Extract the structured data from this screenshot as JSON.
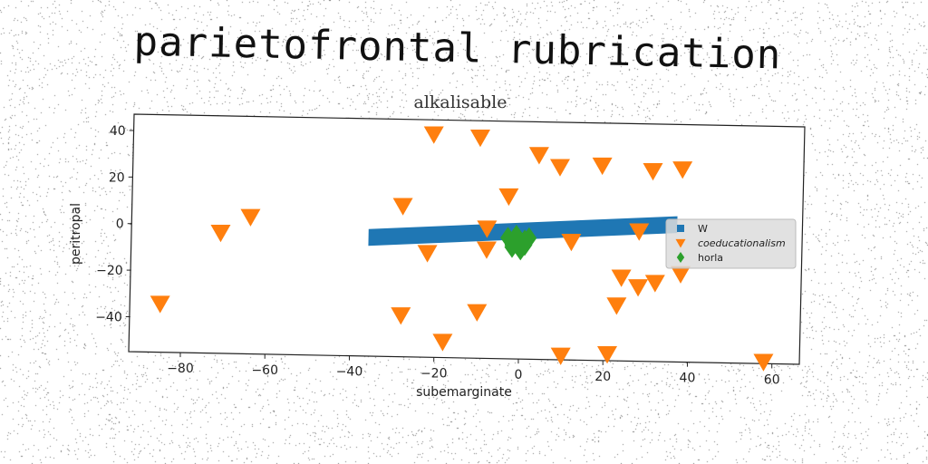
{
  "chart_data": {
    "type": "scatter",
    "title": "parietofrontal rubrication",
    "subtitle": "alkalisable",
    "xlabel": "subemarginate",
    "ylabel": "peritropal",
    "xlim": [
      -92,
      65
    ],
    "ylim": [
      -55,
      47
    ],
    "xticks": [
      -80,
      -60,
      -40,
      -20,
      0,
      20,
      40,
      60
    ],
    "yticks": [
      40,
      20,
      0,
      -20,
      -40
    ],
    "grid": false,
    "legend_position": "center-right",
    "series": [
      {
        "name": "W",
        "kind": "band",
        "color": "#1f77b4",
        "marker": "square",
        "x": [
          -36,
          37
        ],
        "y": [
          -4,
          4
        ]
      },
      {
        "name": "coeducationalism",
        "kind": "points",
        "color": "#ff7f0e",
        "marker": "triangle-down",
        "x": [
          -85,
          -71,
          -64,
          -28,
          -21,
          -10,
          -28,
          -22,
          -18,
          -10,
          -3,
          -8,
          -8,
          4,
          9,
          19,
          31,
          38,
          28,
          12,
          24,
          23,
          28,
          32,
          38,
          10,
          21,
          58
        ],
        "y": [
          -34,
          -3,
          4,
          10,
          41,
          40,
          -37,
          -10,
          -48,
          -35,
          15,
          1,
          -8,
          33,
          28,
          29,
          27,
          28,
          1,
          -4,
          -19,
          -31,
          -23,
          -21,
          -17,
          -53,
          -52,
          -54
        ]
      },
      {
        "name": "horla",
        "kind": "points",
        "color": "#2ca02c",
        "marker": "diamond",
        "x": [
          -3,
          -2,
          -1,
          0,
          1,
          2,
          -2,
          0,
          1,
          -1
        ],
        "y": [
          -3,
          -7,
          -4,
          -5,
          -6,
          -3,
          -6,
          -8,
          -4,
          -2
        ]
      }
    ]
  }
}
